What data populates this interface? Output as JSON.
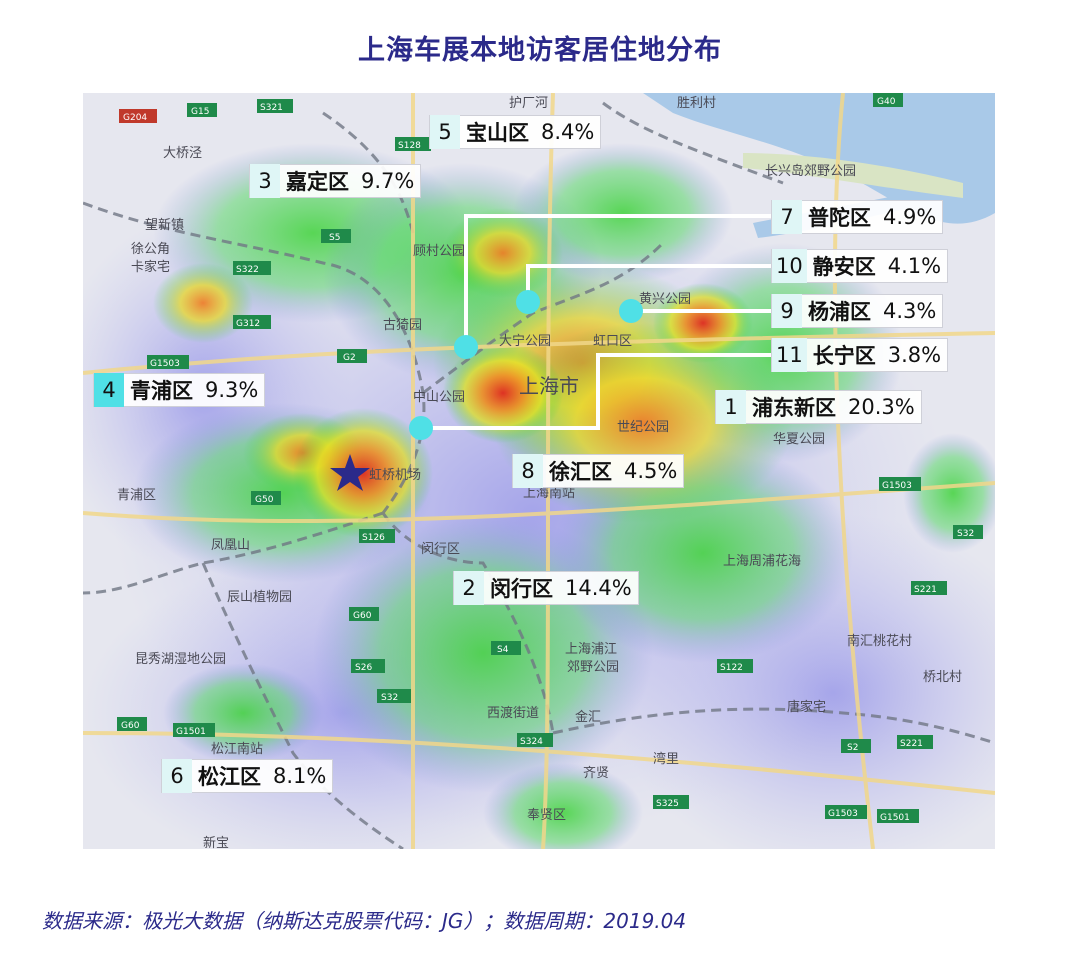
{
  "title": "上海车展本地访客居住地分布",
  "source": "数据来源：极光大数据（纳斯达克股票代码：JG）；数据周期：2019.04",
  "districts": [
    {
      "rank": "5",
      "name": "宝山区",
      "pct": "8.4%"
    },
    {
      "rank": "3",
      "name": "嘉定区",
      "pct": "9.7%"
    },
    {
      "rank": "7",
      "name": "普陀区",
      "pct": "4.9%"
    },
    {
      "rank": "10",
      "name": "静安区",
      "pct": "4.1%"
    },
    {
      "rank": "9",
      "name": "杨浦区",
      "pct": "4.3%"
    },
    {
      "rank": "11",
      "name": "长宁区",
      "pct": "3.8%"
    },
    {
      "rank": "4",
      "name": "青浦区",
      "pct": "9.3%"
    },
    {
      "rank": "1",
      "name": "浦东新区",
      "pct": "20.3%"
    },
    {
      "rank": "8",
      "name": "徐汇区",
      "pct": "4.5%"
    },
    {
      "rank": "2",
      "name": "闵行区",
      "pct": "14.4%"
    },
    {
      "rank": "6",
      "name": "松江区",
      "pct": "8.1%"
    }
  ],
  "map_places": [
    "护厂河",
    "胜利村",
    "大桥泾",
    "望新镇",
    "徐公角",
    "卡家宅",
    "长兴岛郊野公园",
    "顾村公园",
    "古猗园",
    "大宁公园",
    "虹口区",
    "黄兴公园",
    "上海市",
    "中山公园",
    "世纪公园",
    "华夏公园",
    "上海南站",
    "虹桥机场",
    "青浦区",
    "凤凰山",
    "辰山植物园",
    "昆秀湖湿地公园",
    "闵行区",
    "上海周浦花海",
    "上海浦江郊野公园",
    "南汇桃花村",
    "桥北村",
    "唐家宅",
    "西渡街道",
    "金汇",
    "齐贤",
    "湾里",
    "奉贤区",
    "松江南站",
    "新宝"
  ],
  "highways": [
    "G204",
    "G15",
    "S321",
    "G40",
    "G1503",
    "S5",
    "S322",
    "G312",
    "G2",
    "G50",
    "S32",
    "G60",
    "S26",
    "S4",
    "S324",
    "S221",
    "G1501",
    "S2",
    "S325",
    "S122",
    "S128",
    "S126"
  ],
  "colors": {
    "title": "#2b2a8a",
    "marker": "#4fe0e6",
    "star": "#2b2a8a",
    "leader": "#ffffff"
  }
}
